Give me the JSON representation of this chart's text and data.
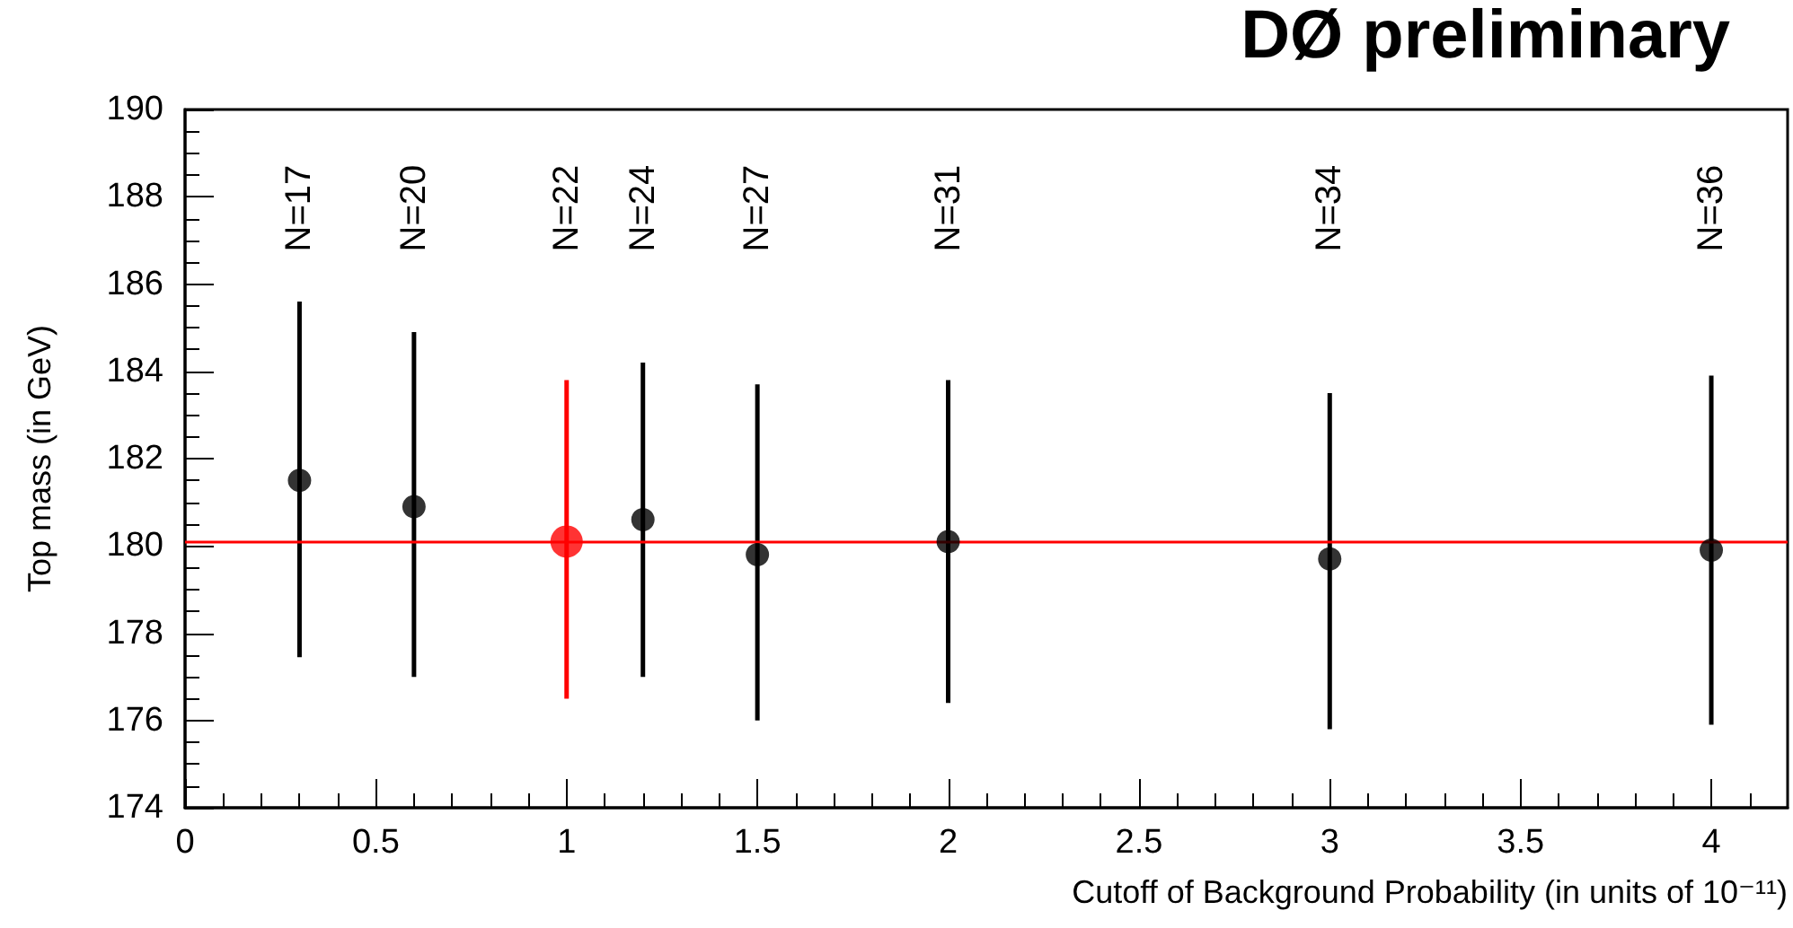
{
  "chart_data": {
    "type": "scatter",
    "title": "DØ preliminary",
    "xlabel": "Cutoff of Background Probability (in units of 10⁻¹¹)",
    "ylabel": "Top mass (in GeV)",
    "series": [
      {
        "color": "#000000",
        "x": [
          0.3,
          0.6,
          1.2,
          1.5,
          2,
          3,
          4
        ],
        "values": [
          181.5,
          180.9,
          180.6,
          179.8,
          180.1,
          179.7,
          179.9
        ],
        "errors": [
          [
            177.45,
            185.6
          ],
          [
            177.0,
            184.9
          ],
          [
            177.0,
            184.2
          ],
          [
            176.0,
            183.7
          ],
          [
            176.4,
            183.8
          ],
          [
            175.8,
            183.5
          ],
          [
            175.9,
            183.9
          ]
        ]
      },
      {
        "color": "#ff0000",
        "x": [
          1
        ],
        "values": [
          180.1
        ],
        "errors": [
          [
            176.5,
            183.8
          ]
        ]
      }
    ],
    "xlim": [
      0,
      4.2
    ],
    "xticks": [
      0,
      0.5,
      1,
      1.5,
      2,
      2.5,
      3,
      3.5,
      4
    ],
    "ylim": [
      174,
      190
    ],
    "yticks": [
      174,
      176,
      178,
      180,
      182,
      184,
      186,
      188,
      190
    ],
    "ref_lines": [
      {
        "axis": "y",
        "value": 180.1,
        "color": "#ff0000"
      }
    ],
    "annotations": [
      "N=17",
      "N=20",
      "N=22",
      "N=24",
      "N=27",
      "N=31",
      "N=34",
      "N=36"
    ],
    "marker": "circle",
    "grid": false
  }
}
